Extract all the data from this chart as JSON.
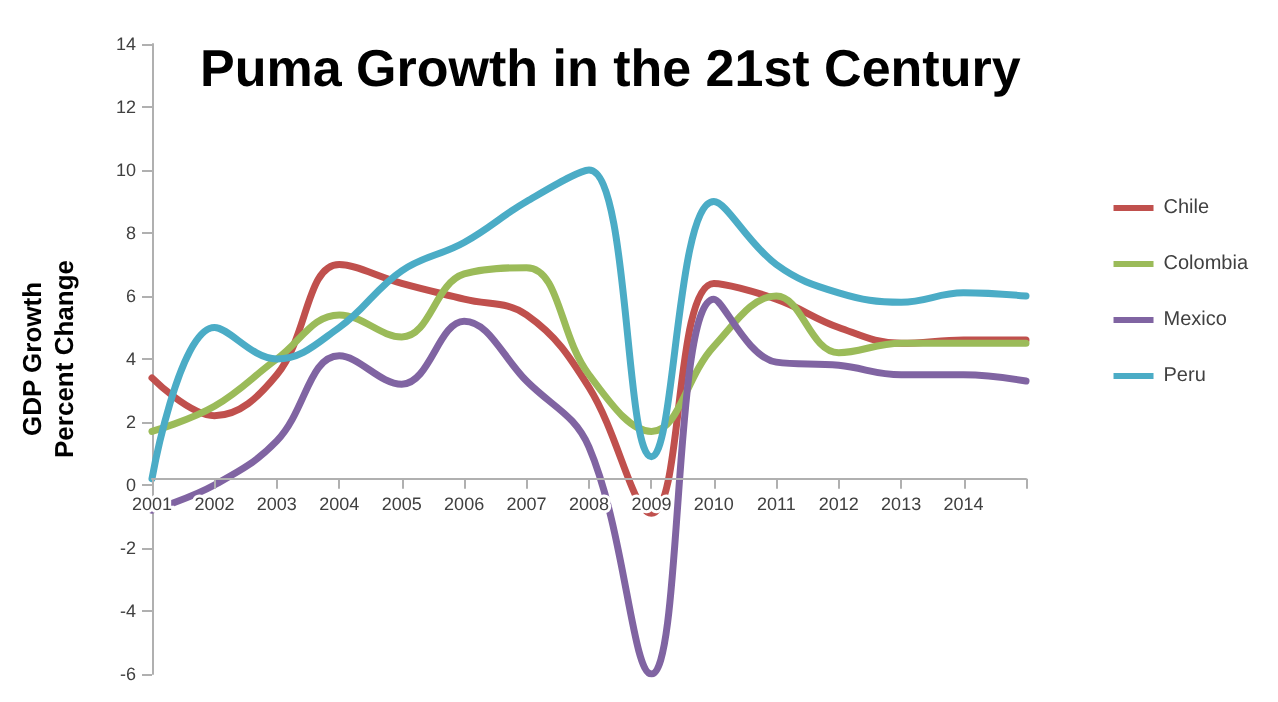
{
  "chart_data": {
    "type": "line",
    "title": "Puma Growth in the 21st Century",
    "ylabel": "GDP Growth\nPercent Change",
    "categories": [
      "2001",
      "2002",
      "2003",
      "2004",
      "2005",
      "2006",
      "2007",
      "2008",
      "2009",
      "2010",
      "2011",
      "2012",
      "2013",
      "2014",
      null
    ],
    "series": [
      {
        "name": "Chile",
        "color": "#c0504d",
        "values": [
          3.4,
          2.2,
          3.5,
          7.0,
          6.4,
          5.9,
          5.4,
          3.1,
          -0.9,
          6.4,
          5.9,
          5.0,
          4.5,
          4.6,
          4.6
        ]
      },
      {
        "name": "Colombia",
        "color": "#9bbb59",
        "values": [
          1.7,
          2.5,
          4.0,
          5.4,
          4.7,
          6.7,
          6.9,
          3.5,
          1.7,
          4.4,
          6.0,
          4.2,
          4.5,
          4.5,
          4.5
        ]
      },
      {
        "name": "Mexico",
        "color": "#8064a2",
        "values": [
          -0.8,
          0.0,
          1.4,
          4.1,
          3.2,
          5.2,
          3.3,
          1.2,
          -6.0,
          5.9,
          3.9,
          3.8,
          3.5,
          3.5,
          3.3
        ]
      },
      {
        "name": "Peru",
        "color": "#4bacc6",
        "values": [
          0.2,
          5.0,
          4.0,
          5.0,
          6.8,
          7.7,
          9.0,
          10.0,
          0.9,
          9.0,
          7.0,
          6.1,
          5.8,
          6.1,
          6.0
        ]
      }
    ],
    "ylim": [
      -6,
      14
    ],
    "yticks": [
      -6,
      -4,
      -2,
      0,
      2,
      4,
      6,
      8,
      10,
      12,
      14
    ],
    "legend": "right",
    "marker": "none",
    "line_style": "solid"
  }
}
